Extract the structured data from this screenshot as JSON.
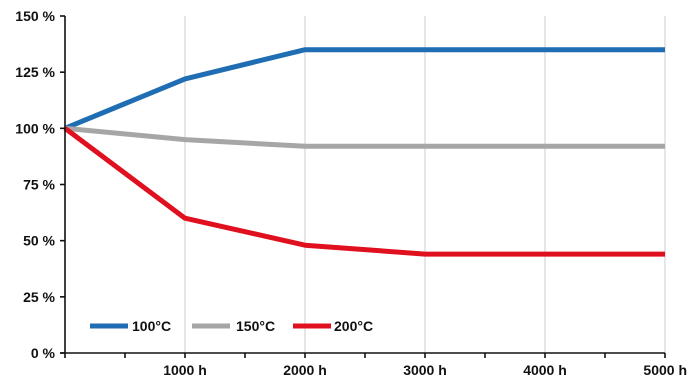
{
  "chart_data": {
    "type": "line",
    "x": [
      0,
      1000,
      2000,
      3000,
      4000,
      5000
    ],
    "x_tick_labels": [
      "1000 h",
      "2000 h",
      "3000 h",
      "4000 h",
      "5000 h"
    ],
    "x_tick_values": [
      1000,
      2000,
      3000,
      4000,
      5000
    ],
    "xlim": [
      0,
      5000
    ],
    "y_tick_labels": [
      "0 %",
      "25 %",
      "50 %",
      "75 %",
      "100 %",
      "125 %",
      "150 %"
    ],
    "y_tick_values": [
      0,
      25,
      50,
      75,
      100,
      125,
      150
    ],
    "ylim": [
      0,
      150
    ],
    "grid": true,
    "legend_position": "bottom-left",
    "series": [
      {
        "name": "100°C",
        "color": "#1f6db3",
        "values": [
          100,
          122,
          135,
          135,
          135,
          135
        ]
      },
      {
        "name": "150°C",
        "color": "#a6a6a6",
        "values": [
          100,
          95,
          92,
          92,
          92,
          92
        ]
      },
      {
        "name": "200°C",
        "color": "#e0101f",
        "values": [
          100,
          60,
          48,
          44,
          44,
          44
        ]
      }
    ]
  }
}
